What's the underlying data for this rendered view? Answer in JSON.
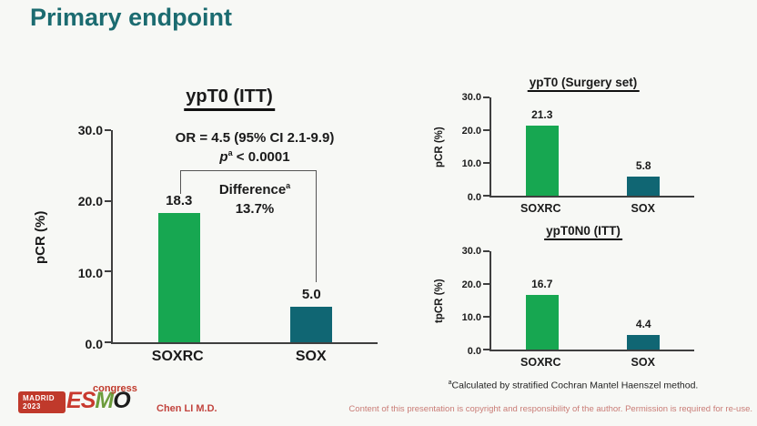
{
  "slide": {
    "title": "Primary endpoint",
    "presenter": "Chen LI M.D.",
    "footnote_sup": "a",
    "footnote_text": "Calculated by stratified Cochran Mantel Haenszel method.",
    "disclaimer": "Content of this presentation is copyright and responsibility of the author. Permission is required for re-use.",
    "logo": {
      "city": "MADRID",
      "year": "2023",
      "congress": "congress",
      "esmo_letters": [
        {
          "ch": "E",
          "color": "#c8392e"
        },
        {
          "ch": "S",
          "color": "#c8392e"
        },
        {
          "ch": "M",
          "color": "#6d9c3c"
        },
        {
          "ch": "O",
          "color": "#1c1c1c"
        }
      ]
    }
  },
  "colors": {
    "title_teal": "#1b6b70",
    "bar_green": "#17a751",
    "bar_teal": "#106673",
    "presenter_red": "#c2443e",
    "disclaimer_red": "#c97c76"
  },
  "chart_data": [
    {
      "type": "bar",
      "title": "ypT0 (ITT)",
      "ylabel": "pCR (%)",
      "categories": [
        "SOXRC",
        "SOX"
      ],
      "values": [
        18.3,
        5.0
      ],
      "value_labels": [
        "18.3",
        "5.0"
      ],
      "ylim": [
        0,
        30
      ],
      "yticks": [
        "0.0",
        "10.0",
        "20.0",
        "30.0"
      ],
      "bar_colors": [
        "#17a751",
        "#106673"
      ],
      "grid": false,
      "annotations": {
        "or_text": "OR = 4.5 (95% CI 2.1-9.9)",
        "p_italic": "p",
        "p_sup": "a",
        "p_rest": " < 0.0001",
        "difference_word": "Difference",
        "difference_sup": "a",
        "difference_value": "13.7%"
      }
    },
    {
      "type": "bar",
      "title": "ypT0 (Surgery set)",
      "ylabel": "pCR (%)",
      "categories": [
        "SOXRC",
        "SOX"
      ],
      "values": [
        21.3,
        5.8
      ],
      "value_labels": [
        "21.3",
        "5.8"
      ],
      "ylim": [
        0,
        30
      ],
      "yticks": [
        "0.0",
        "10.0",
        "20.0",
        "30.0"
      ],
      "bar_colors": [
        "#17a751",
        "#106673"
      ],
      "grid": false
    },
    {
      "type": "bar",
      "title": "ypT0N0 (ITT)",
      "ylabel": "tpCR (%)",
      "categories": [
        "SOXRC",
        "SOX"
      ],
      "values": [
        16.7,
        4.4
      ],
      "value_labels": [
        "16.7",
        "4.4"
      ],
      "ylim": [
        0,
        30
      ],
      "yticks": [
        "0.0",
        "10.0",
        "20.0",
        "30.0"
      ],
      "bar_colors": [
        "#17a751",
        "#106673"
      ],
      "grid": false
    }
  ]
}
